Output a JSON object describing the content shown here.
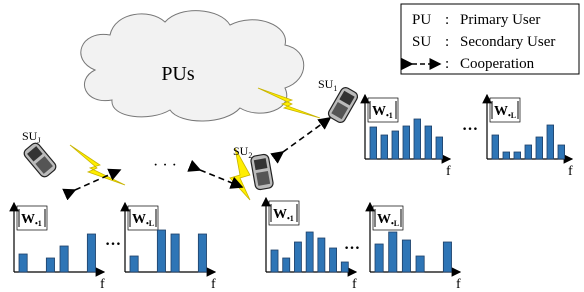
{
  "legend": {
    "items": [
      {
        "abbr": "PU",
        "sep": ":",
        "label": "Primary User"
      },
      {
        "abbr": "SU",
        "sep": ":",
        "label": "Secondary User"
      },
      {
        "sep": ":",
        "label": "Cooperation"
      }
    ]
  },
  "cloud": {
    "label": "PUs"
  },
  "nodes": [
    {
      "label": "SU",
      "sub": "J"
    },
    {
      "label": "SU",
      "sub": "2"
    },
    {
      "label": "SU",
      "sub": "1"
    }
  ],
  "spectra": [
    {
      "label": "W",
      "sub": "•1",
      "axis": "f"
    },
    {
      "label": "W",
      "sub": "•L",
      "axis": "f"
    },
    {
      "label": "W",
      "sub": "•1",
      "axis": "f"
    },
    {
      "label": "W",
      "sub": "•L",
      "axis": "f"
    },
    {
      "label": "W",
      "sub": "•1",
      "axis": "f"
    },
    {
      "label": "W",
      "sub": "•L",
      "axis": "f"
    }
  ],
  "ellipsis": "…",
  "dots": "· · ·"
}
